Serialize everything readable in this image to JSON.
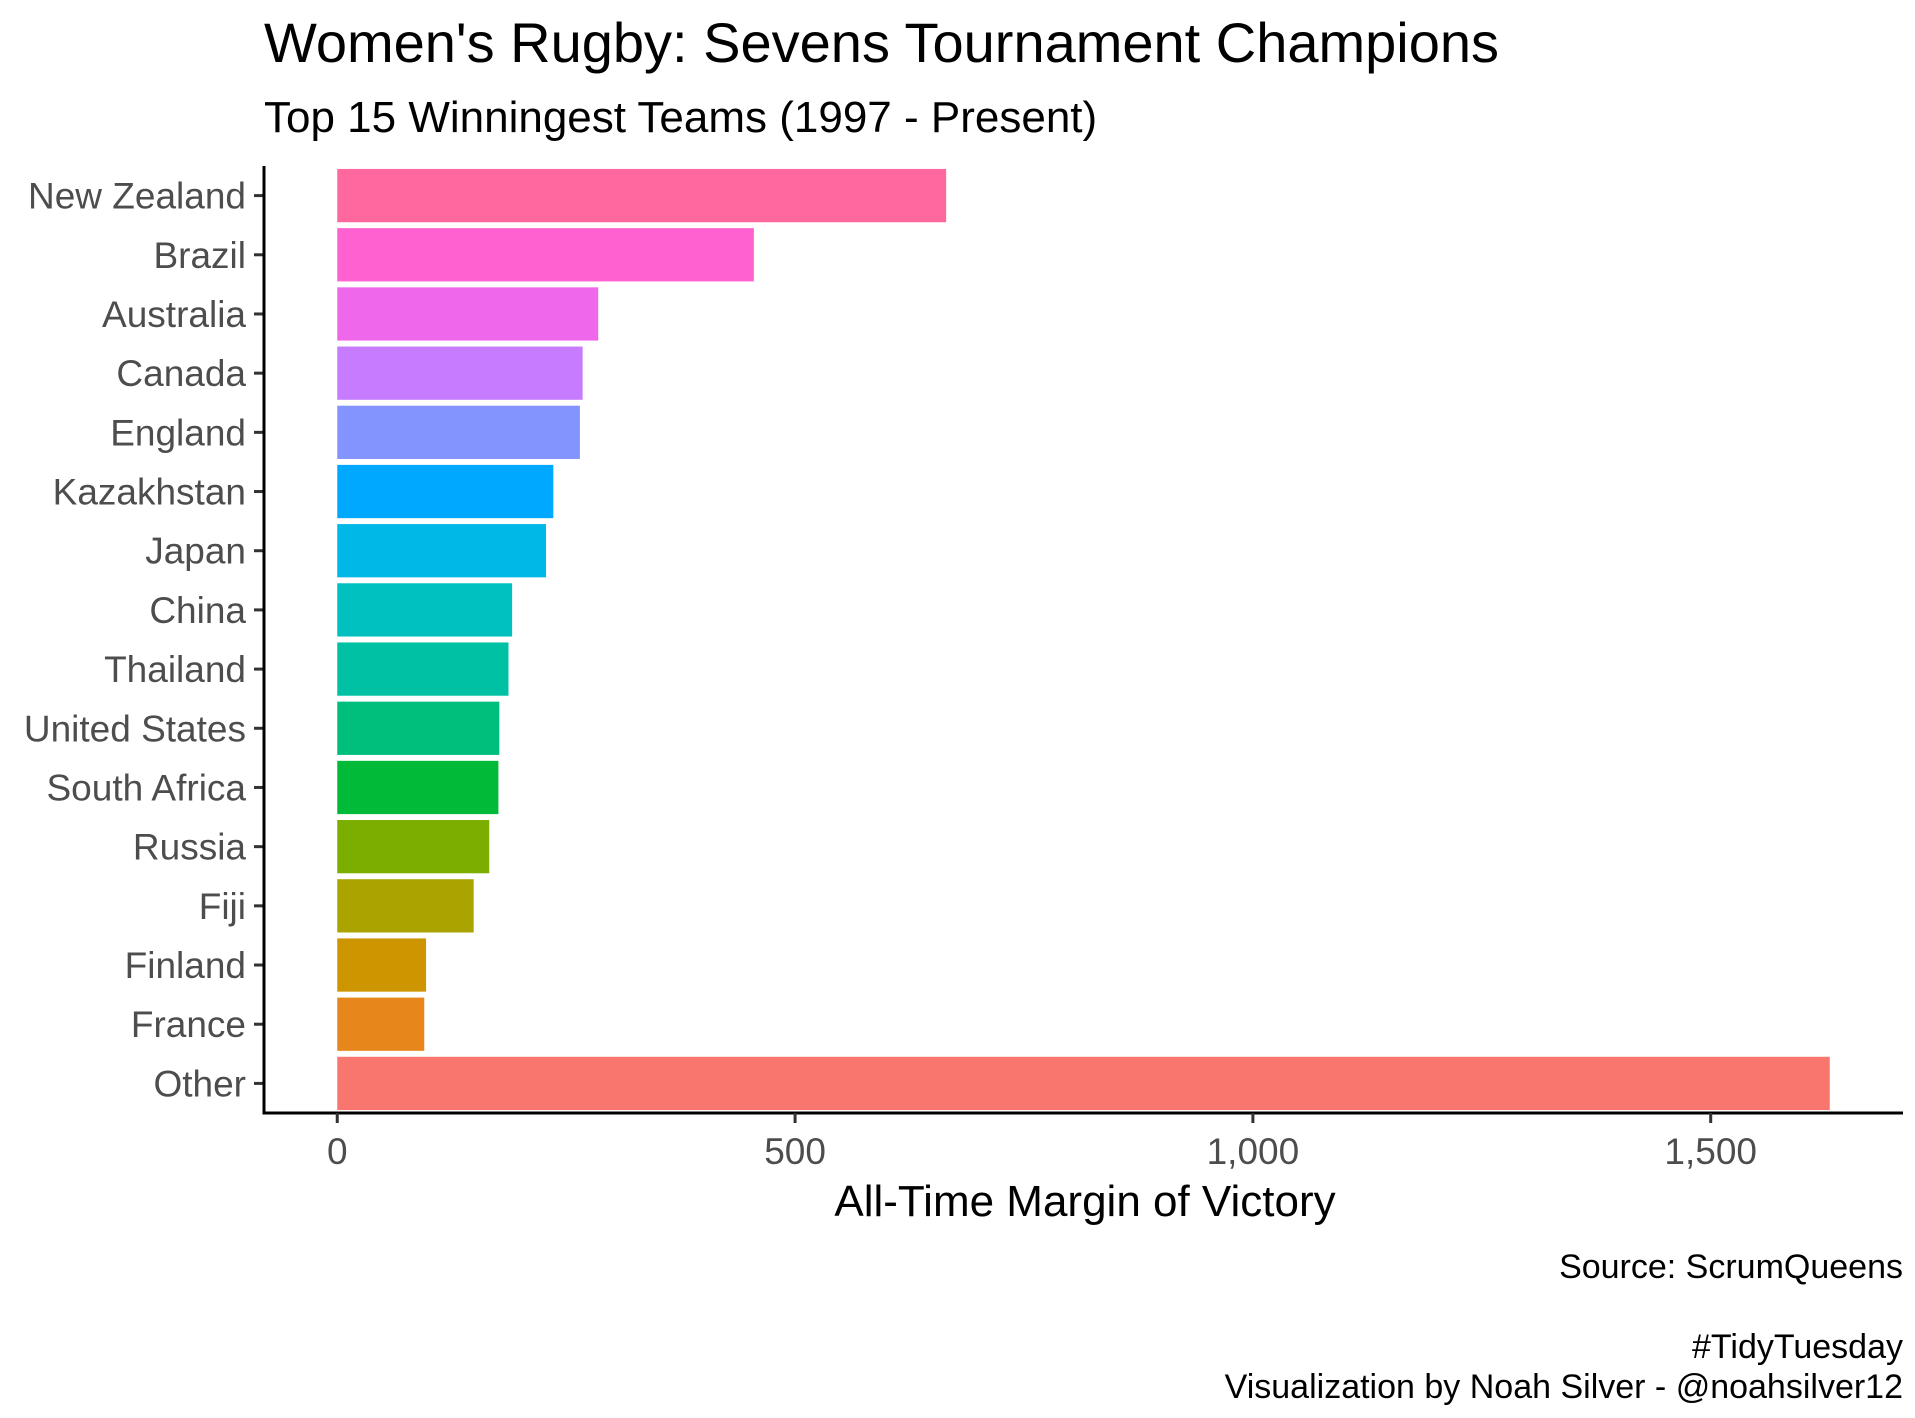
{
  "chart_data": {
    "type": "bar",
    "orientation": "horizontal",
    "title": "Women's Rugby: Sevens Tournament Champions",
    "subtitle": "Top 15 Winningest Teams (1997 - Present)",
    "xlabel": "All-Time Margin of Victory",
    "ylabel": "",
    "xlim": [
      -80,
      1710
    ],
    "xticks": [
      0,
      500,
      1000,
      1500
    ],
    "xtick_labels": [
      "0",
      "500",
      "1,000",
      "1,500"
    ],
    "grid": false,
    "legend": "none",
    "categories": [
      "New Zealand",
      "Brazil",
      "Australia",
      "Canada",
      "England",
      "Kazakhstan",
      "Japan",
      "China",
      "Thailand",
      "United States",
      "South Africa",
      "Russia",
      "Fiji",
      "Finland",
      "France",
      "Other"
    ],
    "values": [
      665,
      455,
      285,
      268,
      265,
      236,
      228,
      191,
      187,
      177,
      176,
      166,
      149,
      97,
      95,
      1630
    ],
    "colors": [
      "#FF689F",
      "#FF62D0",
      "#EF67EB",
      "#C77CFF",
      "#8494FF",
      "#00A9FF",
      "#00B8E7",
      "#00C0C0",
      "#00C1A4",
      "#00BF7D",
      "#00BA38",
      "#7CAE00",
      "#ABA300",
      "#CD9600",
      "#E7861B",
      "#F8766D"
    ],
    "caption_lines": [
      "Source: ScrumQueens",
      "",
      "#TidyTuesday",
      "Visualization by Noah Silver - @noahsilver12"
    ]
  }
}
